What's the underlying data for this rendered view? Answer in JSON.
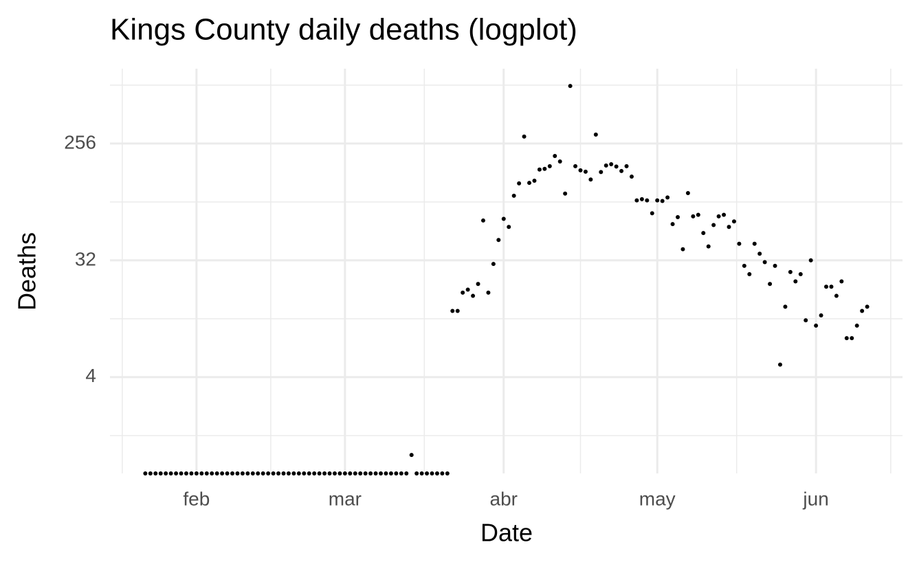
{
  "chart_data": {
    "type": "scatter",
    "title": "Kings County daily deaths (logplot)",
    "x_label": "Date",
    "y_label": "Deaths",
    "x": [
      22,
      23,
      24,
      25,
      26,
      27,
      28,
      29,
      30,
      31,
      32,
      33,
      34,
      35,
      36,
      37,
      38,
      39,
      40,
      41,
      42,
      43,
      44,
      45,
      46,
      47,
      48,
      49,
      50,
      51,
      52,
      53,
      54,
      55,
      56,
      57,
      58,
      59,
      60,
      61,
      62,
      63,
      64,
      65,
      66,
      67,
      68,
      69,
      70,
      71,
      72,
      73,
      74,
      75,
      76,
      77,
      78,
      79,
      80,
      81,
      82,
      83,
      84,
      85,
      86,
      87,
      88,
      89,
      90,
      91,
      92,
      93,
      94,
      95,
      96,
      97,
      98,
      99,
      100,
      101,
      102,
      103,
      104,
      105,
      106,
      107,
      108,
      109,
      110,
      111,
      112,
      113,
      114,
      115,
      116,
      117,
      118,
      119,
      120,
      121,
      122,
      123,
      124,
      125,
      126,
      127,
      128,
      129,
      130,
      131,
      132,
      133,
      134,
      135,
      136,
      137,
      138,
      139,
      140,
      141,
      142,
      143,
      144,
      145,
      146,
      147,
      148,
      149,
      150,
      151,
      152,
      153,
      154,
      155,
      156,
      157,
      158,
      159,
      160,
      161,
      162,
      163
    ],
    "values": [
      0,
      0,
      0,
      0,
      0,
      0,
      0,
      0,
      0,
      0,
      0,
      0,
      0,
      0,
      0,
      0,
      0,
      0,
      0,
      0,
      0,
      0,
      0,
      0,
      0,
      0,
      0,
      0,
      0,
      0,
      0,
      0,
      0,
      0,
      0,
      0,
      0,
      0,
      0,
      0,
      0,
      0,
      0,
      0,
      0,
      0,
      0,
      0,
      0,
      0,
      0,
      0,
      1,
      0,
      0,
      0,
      0,
      0,
      0,
      0,
      13,
      13,
      18,
      19,
      17,
      21,
      65,
      18,
      30,
      46,
      67,
      58,
      101,
      126,
      290,
      127,
      132,
      161,
      163,
      171,
      205,
      186,
      105,
      713,
      171,
      159,
      155,
      135,
      300,
      154,
      173,
      177,
      170,
      157,
      171,
      142,
      93,
      95,
      93,
      74,
      93,
      92,
      98,
      61,
      69,
      39,
      106,
      70,
      72,
      52,
      41,
      60,
      70,
      72,
      58,
      64,
      43,
      29,
      25,
      43,
      36,
      31,
      21,
      29,
      5,
      14,
      26,
      22,
      25,
      11,
      32,
      10,
      12,
      20,
      20,
      17,
      22,
      8,
      8,
      10,
      13,
      14
    ],
    "color": "#000000",
    "xlim": [
      15.1,
      169.9
    ],
    "xticks": [
      {
        "value": 32,
        "label": "feb"
      },
      {
        "value": 61,
        "label": "mar"
      },
      {
        "value": 92,
        "label": "abr"
      },
      {
        "value": 122,
        "label": "may"
      },
      {
        "value": 153,
        "label": "jun"
      }
    ],
    "xminorticks": [
      17.5,
      46.5,
      76.5,
      107,
      137.5,
      167.6
    ],
    "ylim": [
      0.72,
      970
    ],
    "ylog": 2,
    "yticks": [
      4,
      32,
      256
    ],
    "yminorticks": [
      1.414,
      11.31,
      90.51,
      724.1
    ],
    "grid": true
  }
}
